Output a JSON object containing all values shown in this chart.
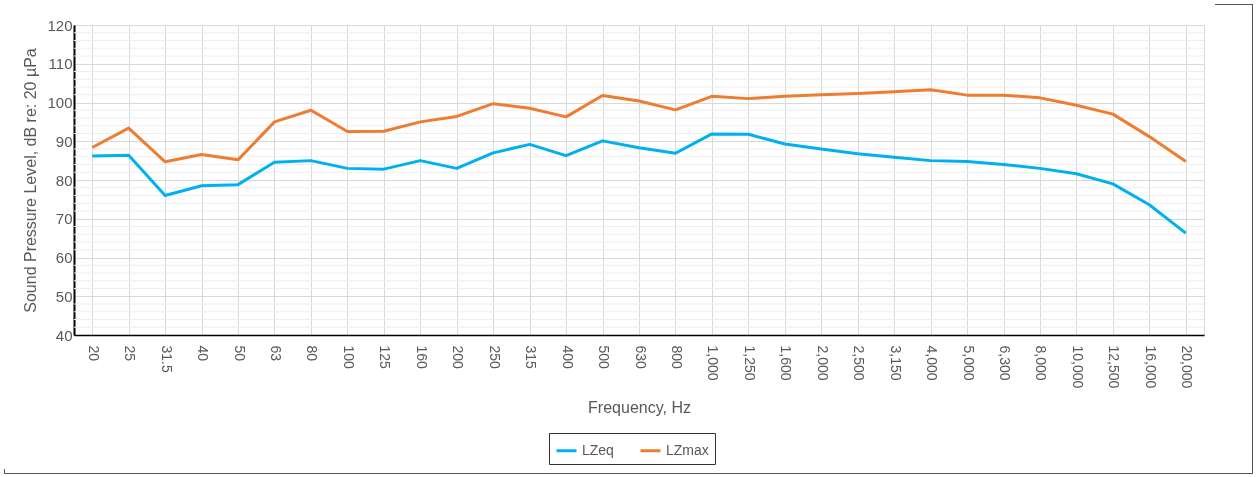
{
  "chart_data": {
    "type": "line",
    "xlabel": "Frequency, Hz",
    "ylabel": "Sound Pressure Level, dB re: 20 µPa",
    "categories": [
      "20",
      "25",
      "31.5",
      "40",
      "50",
      "63",
      "80",
      "100",
      "125",
      "160",
      "200",
      "250",
      "315",
      "400",
      "500",
      "630",
      "800",
      "1,000",
      "1,250",
      "1,600",
      "2,000",
      "2,500",
      "3,150",
      "4,000",
      "5,000",
      "6,300",
      "8,000",
      "10,000",
      "12,500",
      "16,000",
      "20,000"
    ],
    "series": [
      {
        "name": "LZeq",
        "color": "#00b0f0",
        "values": [
          86.2,
          86.4,
          76,
          78.5,
          78.8,
          84.6,
          85,
          83,
          82.8,
          85,
          83,
          87,
          89.2,
          86.3,
          90.1,
          88.3,
          86.9,
          91.9,
          91.8,
          89.3,
          88,
          86.8,
          85.9,
          85,
          84.8,
          84,
          83,
          81.6,
          79,
          73.6,
          66.3
        ]
      },
      {
        "name": "LZmax",
        "color": "#ed7d31",
        "values": [
          88.4,
          93.4,
          84.7,
          86.6,
          85.2,
          95,
          98,
          92.5,
          92.6,
          95,
          96.4,
          99.7,
          98.5,
          96.3,
          101.8,
          100.4,
          98.1,
          101.6,
          101,
          101.6,
          102,
          102.3,
          102.8,
          103.3,
          101.9,
          101.9,
          101.2,
          99.3,
          97,
          91.2,
          84.8
        ]
      }
    ],
    "ylim": [
      40,
      120
    ],
    "yticks": [
      40,
      50,
      60,
      70,
      80,
      90,
      100,
      110,
      120
    ],
    "grid": true,
    "legend": "bottom",
    "line_style": "solid"
  }
}
